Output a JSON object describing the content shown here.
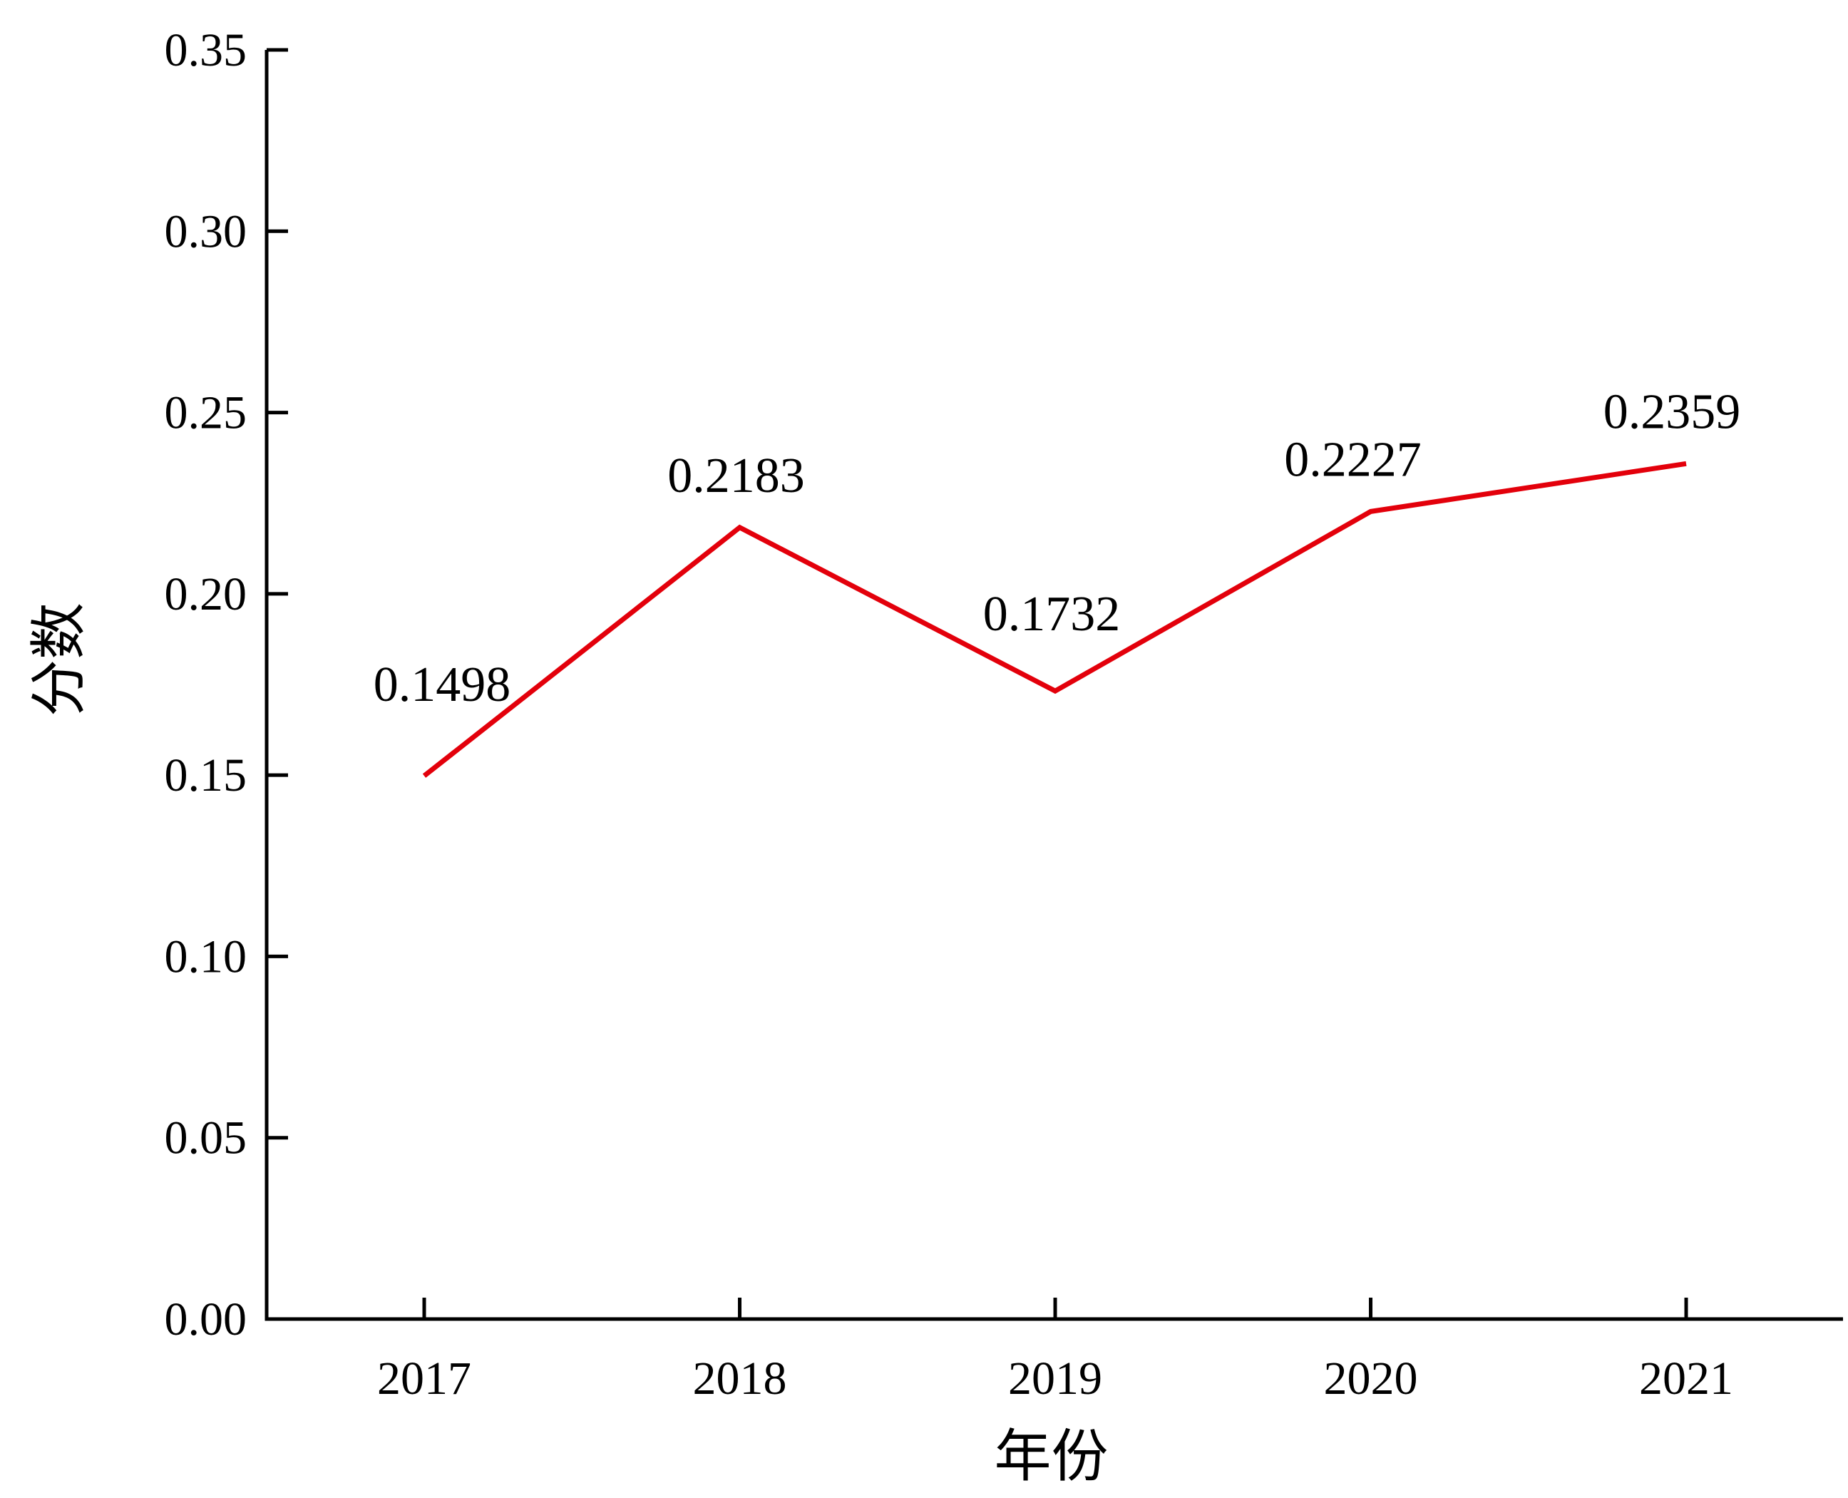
{
  "chart_data": {
    "type": "line",
    "title": "",
    "xlabel": "年份",
    "ylabel": "分数",
    "categories": [
      "2017",
      "2018",
      "2019",
      "2020",
      "2021"
    ],
    "series": [
      {
        "values": [
          0.1498,
          0.2183,
          0.1732,
          0.2227,
          0.2359
        ],
        "color": "#e3000b"
      }
    ],
    "data_labels": [
      "0.1498",
      "0.2183",
      "0.1732",
      "0.2227",
      "0.2359"
    ],
    "ylim": [
      0,
      0.35
    ],
    "yticks": [
      "0.00",
      "0.05",
      "0.10",
      "0.15",
      "0.20",
      "0.25",
      "0.30",
      "0.35"
    ],
    "grid": false,
    "legend": "none"
  }
}
